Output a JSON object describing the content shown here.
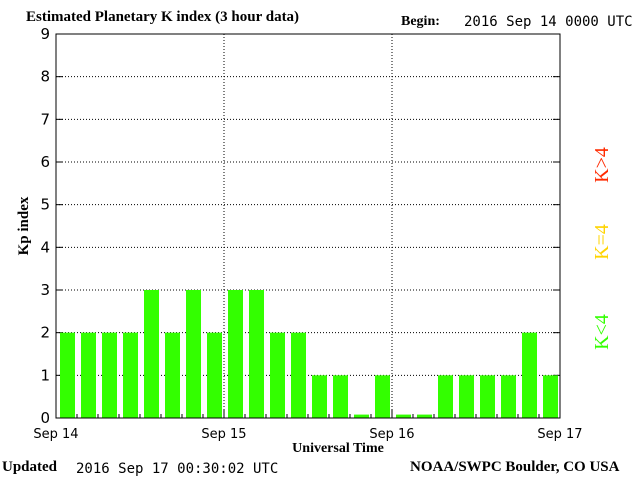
{
  "header": {
    "title": "Estimated Planetary K index (3 hour data)",
    "begin_label": "Begin:",
    "begin_value": "2016 Sep 14 0000 UTC"
  },
  "footer": {
    "updated_label": "Updated",
    "updated_value": "2016 Sep 17 00:30:02 UTC",
    "credit": "NOAA/SWPC Boulder, CO USA"
  },
  "legend": {
    "items": [
      {
        "label": "K>4",
        "color": "#ff2a00"
      },
      {
        "label": "K=4",
        "color": "#ffd400"
      },
      {
        "label": "K<4",
        "color": "#33ff00"
      }
    ]
  },
  "colors": {
    "bar": "#33ff00",
    "axis": "#000000",
    "grid": "#000000"
  },
  "chart_data": {
    "type": "bar",
    "title": "Estimated Planetary K index (3 hour data)",
    "xlabel": "Universal Time",
    "ylabel": "Kp index",
    "ylim": [
      0,
      9
    ],
    "yticks": [
      0,
      1,
      2,
      3,
      4,
      5,
      6,
      7,
      8,
      9
    ],
    "xticks": [
      "Sep 14",
      "Sep 15",
      "Sep 16",
      "Sep 17"
    ],
    "interval_hours": 3,
    "grid": true,
    "legend_position": "right",
    "values": [
      2,
      2,
      2,
      2,
      3,
      2,
      3,
      2,
      3,
      3,
      2,
      2,
      1,
      1,
      0,
      1,
      0,
      0,
      1,
      1,
      1,
      1,
      2,
      1
    ]
  }
}
